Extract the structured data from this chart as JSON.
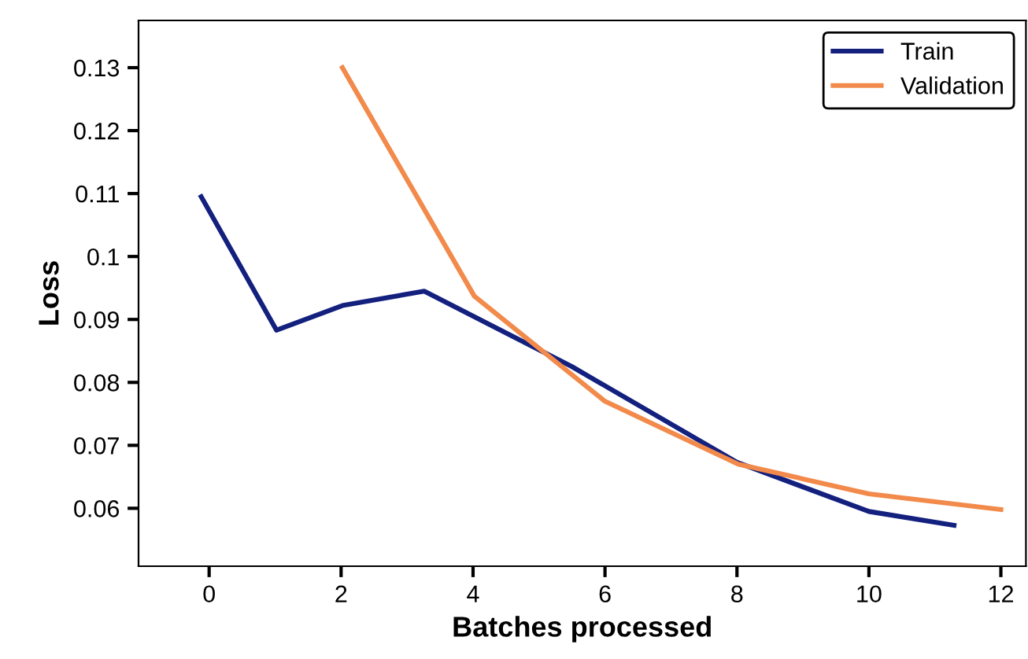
{
  "chart_data": {
    "type": "line",
    "xlabel": "Batches processed",
    "ylabel": "Loss",
    "xlim": [
      -1.07,
      12.38
    ],
    "ylim": [
      0.0508,
      0.1375
    ],
    "xticks": [
      0,
      2,
      4,
      6,
      8,
      10,
      12
    ],
    "yticks": [
      0.06,
      0.07,
      0.08,
      0.09,
      0.1,
      0.11,
      0.12,
      0.13
    ],
    "grid": false,
    "legend": "top right",
    "marker": "none",
    "line_style": "solid",
    "series": [
      {
        "name": "Train",
        "color": "#13207e",
        "x": [
          -0.12,
          1.02,
          2.02,
          3.26,
          5.5,
          8.0,
          10.0,
          11.29
        ],
        "values": [
          0.1095,
          0.0883,
          0.0922,
          0.0945,
          0.0825,
          0.0673,
          0.0595,
          0.0573
        ]
      },
      {
        "name": "Validation",
        "color": "#f28a4b",
        "x": [
          2.02,
          4.02,
          6.0,
          8.02,
          10.0,
          12.0
        ],
        "values": [
          0.13,
          0.0937,
          0.077,
          0.067,
          0.0623,
          0.0598
        ]
      }
    ]
  }
}
